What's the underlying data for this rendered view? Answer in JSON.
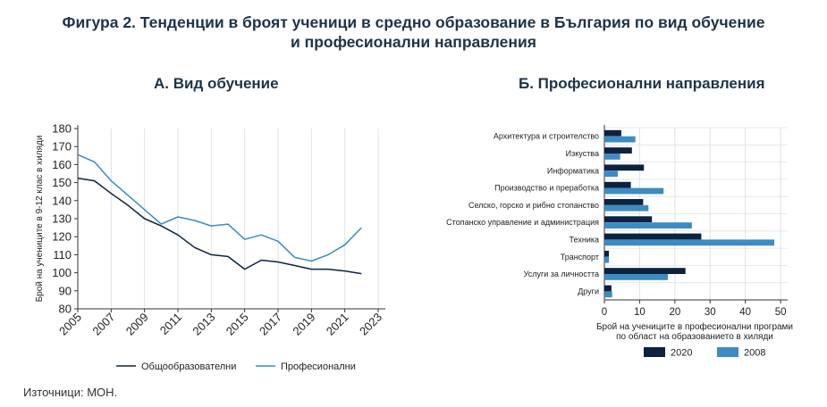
{
  "figure": {
    "title_line1": "Фигура 2. Тенденции в броят ученици в средно образование в България по вид обучение",
    "title_line2": "и професионални направления",
    "source": "Източници: МОН."
  },
  "colors": {
    "dark": "#0d2140",
    "light": "#3d8bc2",
    "grid": "#dde2ea",
    "text": "#222222"
  },
  "chart_data": [
    {
      "type": "line",
      "title": "А. Вид обучение",
      "ylabel": "Брой на учениците в 9-12 клас в хиляди",
      "xlabel": "",
      "ylim": [
        80,
        180
      ],
      "yticks": [
        80,
        90,
        100,
        110,
        120,
        130,
        140,
        150,
        160,
        170,
        180
      ],
      "xlim": [
        2005,
        2023
      ],
      "xticks": [
        2005,
        2007,
        2009,
        2011,
        2013,
        2015,
        2017,
        2019,
        2021,
        2023
      ],
      "grid": true,
      "legend": "bottom",
      "x": [
        2005,
        2006,
        2007,
        2008,
        2009,
        2010,
        2011,
        2012,
        2013,
        2014,
        2015,
        2016,
        2017,
        2018,
        2019,
        2020,
        2021,
        2022
      ],
      "series": [
        {
          "name": "Общообразователни",
          "color": "#0d2140",
          "values": [
            152.5,
            151,
            144,
            137.5,
            130,
            126,
            121,
            114,
            110,
            109,
            102,
            107,
            106,
            104,
            102,
            102,
            101,
            99.5
          ]
        },
        {
          "name": "Професионални",
          "color": "#3d8bc2",
          "values": [
            165.5,
            161.5,
            151,
            143,
            135,
            127,
            131,
            129,
            126,
            127,
            118.5,
            121,
            117.5,
            108.5,
            106.5,
            110,
            115.5,
            125
          ]
        }
      ]
    },
    {
      "type": "bar",
      "orientation": "horizontal",
      "title": "Б. Професионални направления",
      "xlabel_line1": "Брой на учениците в професионални програми",
      "xlabel_line2": "по област на образованието в хиляди",
      "xlim": [
        0,
        52
      ],
      "xticks": [
        0,
        10,
        20,
        30,
        40,
        50
      ],
      "grid": true,
      "legend": "bottom",
      "categories": [
        "Архитектура и строителство",
        "Изкуства",
        "Информатика",
        "Производство и преработка",
        "Селско, горско и рибно стопанство",
        "Стопанско управление и администрация",
        "Техника",
        "Транспорт",
        "Услуги за личността",
        "Други"
      ],
      "series": [
        {
          "name": "2020",
          "color": "#0d2140",
          "values": [
            4.8,
            7.8,
            11.2,
            7.5,
            11,
            13.5,
            27.5,
            1.3,
            23,
            2
          ]
        },
        {
          "name": "2008",
          "color": "#3d8bc2",
          "values": [
            8.8,
            4.5,
            3.8,
            16.8,
            12.5,
            24.8,
            48.2,
            1.3,
            18,
            2.2
          ]
        }
      ]
    }
  ]
}
